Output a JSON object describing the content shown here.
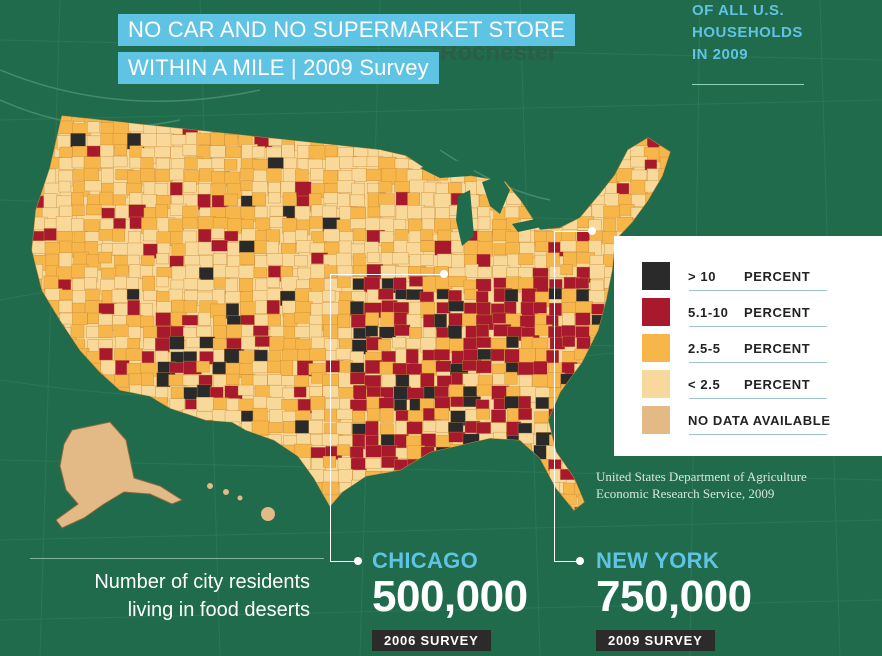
{
  "title": {
    "line1": "NO CAR AND NO SUPERMARKET STORE",
    "line2": "WITHIN A MILE | 2009 Survey"
  },
  "basemap_text": "Rochester",
  "top_right": {
    "line1": "OF ALL U.S.",
    "line2": "HOUSEHOLDS",
    "line3": "IN 2009"
  },
  "legend": {
    "items": [
      {
        "range": "> 10",
        "unit": "PERCENT",
        "color": "#2a2a2a"
      },
      {
        "range": "5.1-10",
        "unit": "PERCENT",
        "color": "#a8192e"
      },
      {
        "range": "2.5-5",
        "unit": "PERCENT",
        "color": "#f6b649"
      },
      {
        "range": "< 2.5",
        "unit": "PERCENT",
        "color": "#f8d99a"
      },
      {
        "range": "NO DATA AVAILABLE",
        "unit": "",
        "color": "#e3b985"
      }
    ]
  },
  "source": {
    "line1": "United States Department of Agriculture",
    "line2": "Economic Research Service, 2009"
  },
  "residents": {
    "line1": "Number of city residents",
    "line2": "living in food deserts"
  },
  "cities": [
    {
      "name": "CHICAGO",
      "value": "500,000",
      "survey": "2006 SURVEY"
    },
    {
      "name": "NEW YORK",
      "value": "750,000",
      "survey": "2009 SURVEY"
    }
  ],
  "colors": {
    "background": "#1f6b4c",
    "accent": "#5fc3e4",
    "over_10": "#2a2a2a",
    "from_5_to_10": "#a8192e",
    "from_2_5_to_5": "#f6b649",
    "under_2_5": "#f8d99a",
    "no_data": "#e3b985"
  }
}
